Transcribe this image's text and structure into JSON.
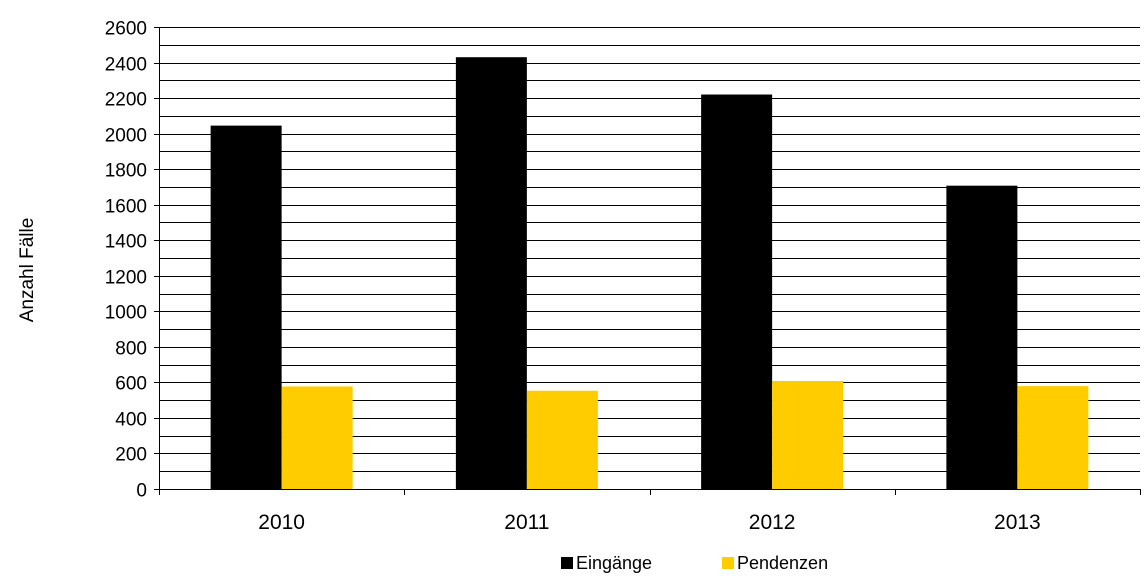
{
  "chart_data": {
    "type": "bar",
    "title": "",
    "xlabel": "",
    "ylabel": "Anzahl Fälle",
    "categories": [
      "2010",
      "2011",
      "2012",
      "2013"
    ],
    "series": [
      {
        "name": "Eingänge",
        "values": [
          2045,
          2430,
          2220,
          1707
        ]
      },
      {
        "name": "Pendenzen",
        "values": [
          577,
          553,
          608,
          579
        ]
      }
    ],
    "ylim": [
      0,
      2600
    ],
    "ytick_step": 200,
    "minor_gridline_step": 100,
    "grid": true,
    "legend": "bottom-center",
    "colors": [
      "#000000",
      "#ffcc00"
    ]
  }
}
